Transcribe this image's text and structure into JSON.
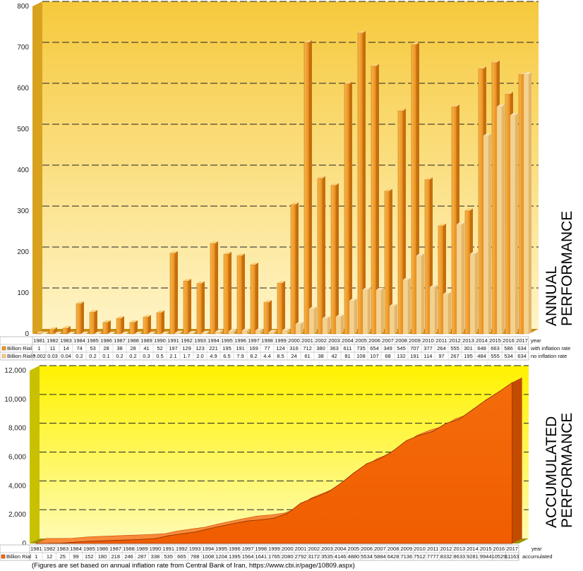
{
  "chart_data": [
    {
      "type": "bar",
      "side_label_lines": [
        "ANNUAL",
        "PERFORMANCE"
      ],
      "ylim": [
        0,
        800
      ],
      "yticks": [
        "0",
        "100",
        "200",
        "300",
        "400",
        "500",
        "600",
        "700",
        "800"
      ],
      "row_header": "year",
      "categories": [
        "1981",
        "1982",
        "1983",
        "1984",
        "1985",
        "1986",
        "1987",
        "1988",
        "1989",
        "1990",
        "1991",
        "1992",
        "1993",
        "1994",
        "1995",
        "1996",
        "1997",
        "1998",
        "1999",
        "2000",
        "2001",
        "2002",
        "2003",
        "2004",
        "2005",
        "2006",
        "2007",
        "2008",
        "2009",
        "2010",
        "2011",
        "2012",
        "2013",
        "2014",
        "2015",
        "2016",
        "2017"
      ],
      "series": [
        {
          "name": "Billion Rial",
          "row_note": "with inflation rate",
          "color": "#f09a1e",
          "values": [
            1,
            11,
            14,
            74,
            53,
            28,
            38,
            28,
            41,
            52,
            197,
            129,
            123,
            221,
            195,
            191,
            169,
            77,
            124,
            316,
            712,
            380,
            363,
            611,
            735,
            654,
            349,
            545,
            707,
            377,
            264,
            555,
            301,
            648,
            663,
            586,
            634
          ],
          "labels": [
            "1",
            "11",
            "14",
            "74",
            "53",
            "28",
            "38",
            "28",
            "41",
            "52",
            "197",
            "129",
            "123",
            "221",
            "195",
            "191",
            "169",
            "77",
            "124",
            "316",
            "712",
            "380",
            "363",
            "611",
            "735",
            "654",
            "349",
            "545",
            "707",
            "377",
            "264",
            "555",
            "301",
            "648",
            "663",
            "586",
            "634"
          ]
        },
        {
          "name": "Billion Rial *",
          "row_note": "no inflation rate",
          "color": "#f4cf8e",
          "values": [
            0.002,
            0.03,
            0.04,
            0.2,
            0.2,
            0.1,
            0.2,
            0.2,
            0.3,
            0.5,
            2.1,
            1.7,
            2.0,
            4.9,
            6.5,
            7.9,
            8.2,
            4.4,
            8.5,
            24,
            61,
            38,
            42,
            81,
            108,
            107,
            68,
            132,
            191,
            114,
            97,
            267,
            195,
            484,
            555,
            534,
            634
          ],
          "labels": [
            "0.002",
            "0.03",
            "0.04",
            "0.2",
            "0.2",
            "0.1",
            "0.2",
            "0.2",
            "0.3",
            "0.5",
            "2.1",
            "1.7",
            "2.0",
            "4.9",
            "6.5",
            "7.9",
            "8.2",
            "4.4",
            "8.5",
            "24",
            "61",
            "38",
            "42",
            "81",
            "108",
            "107",
            "68",
            "132",
            "191",
            "114",
            "97",
            "267",
            "195",
            "484",
            "555",
            "534",
            "634"
          ]
        }
      ]
    },
    {
      "type": "area",
      "side_label_lines": [
        "ACCUMULATED",
        "PERFORMANCE"
      ],
      "ylim": [
        0,
        12000
      ],
      "yticks": [
        "0",
        "2,000",
        "4,000",
        "6,000",
        "8,000",
        "10,000",
        "12,000"
      ],
      "row_header": "year",
      "categories": [
        "1981",
        "1982",
        "1983",
        "1984",
        "1985",
        "1986",
        "1987",
        "1988",
        "1989",
        "1990",
        "1991",
        "1992",
        "1993",
        "1994",
        "1995",
        "1996",
        "1997",
        "1998",
        "1999",
        "2000",
        "2001",
        "2002",
        "2003",
        "2004",
        "2005",
        "2006",
        "2007",
        "2008",
        "2009",
        "2010",
        "2011",
        "2012",
        "2013",
        "2014",
        "2015",
        "2016",
        "2017"
      ],
      "series": [
        {
          "name": "Billion Rial",
          "row_note": "accumulated",
          "color": "#f26a0a",
          "values": [
            1,
            12,
            25,
            99,
            152,
            180,
            218,
            246,
            287,
            338,
            535,
            665,
            788,
            1008,
            1204,
            1395,
            1564,
            1641,
            1765,
            2080,
            2792,
            3172,
            3535,
            4146,
            4880,
            5534,
            5884,
            6428,
            7136,
            7512,
            7777,
            8332,
            8633,
            9281,
            9944,
            10529,
            11163
          ],
          "labels": [
            "1",
            "12",
            "25",
            "99",
            "152",
            "180",
            "218",
            "246",
            "287",
            "338",
            "535",
            "665",
            "788",
            "1008",
            "1204",
            "1395",
            "1564",
            "1641",
            "1765",
            "2080",
            "2792",
            "3172",
            "3535",
            "4146",
            "4880",
            "5534",
            "5884",
            "6428",
            "7136",
            "7512",
            "7777",
            "8332",
            "8633",
            "9281",
            "9944",
            "10529",
            "11163"
          ]
        }
      ]
    }
  ],
  "footnote": "(Figures are set based on annual inflation rate from Central Bank of Iran, https://www.cbi.ir/page/10809.aspx)"
}
